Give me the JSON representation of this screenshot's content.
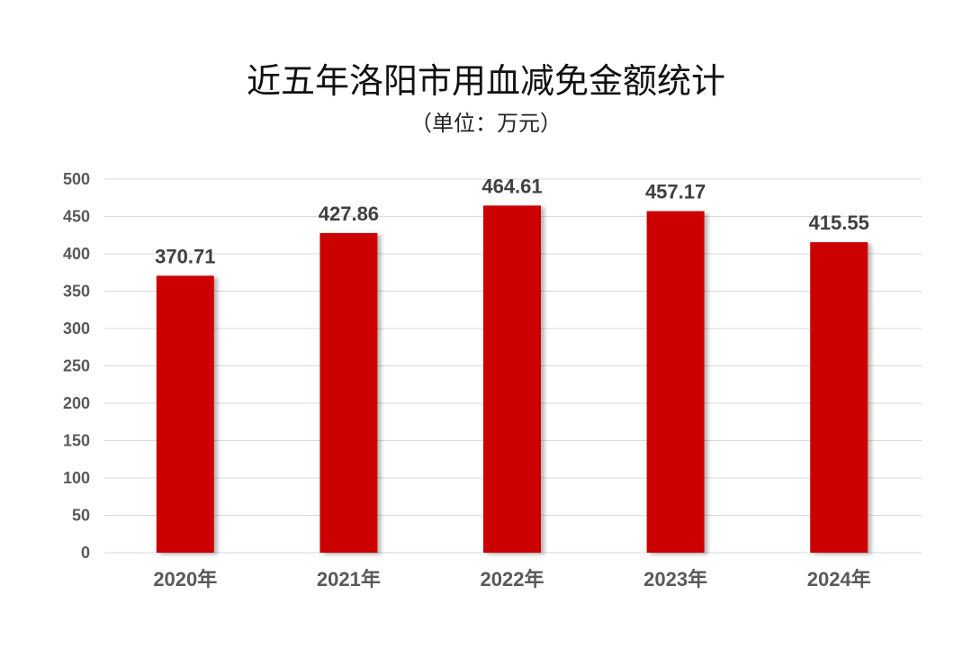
{
  "chart_data": {
    "type": "bar",
    "title": "近五年洛阳市用血减免金额统计",
    "subtitle": "（单位：万元）",
    "categories": [
      "2020年",
      "2021年",
      "2022年",
      "2023年",
      "2024年"
    ],
    "values": [
      370.71,
      427.86,
      464.61,
      457.17,
      415.55
    ],
    "data_labels": [
      "370.71",
      "427.86",
      "464.61",
      "457.17",
      "415.55"
    ],
    "ylim": [
      0,
      500
    ],
    "y_ticks": [
      "0",
      "50",
      "100",
      "150",
      "200",
      "250",
      "300",
      "350",
      "400",
      "450",
      "500"
    ],
    "xlabel": "",
    "ylabel": "",
    "grid": true,
    "legend": "none",
    "bar_color": "#cc0000"
  }
}
